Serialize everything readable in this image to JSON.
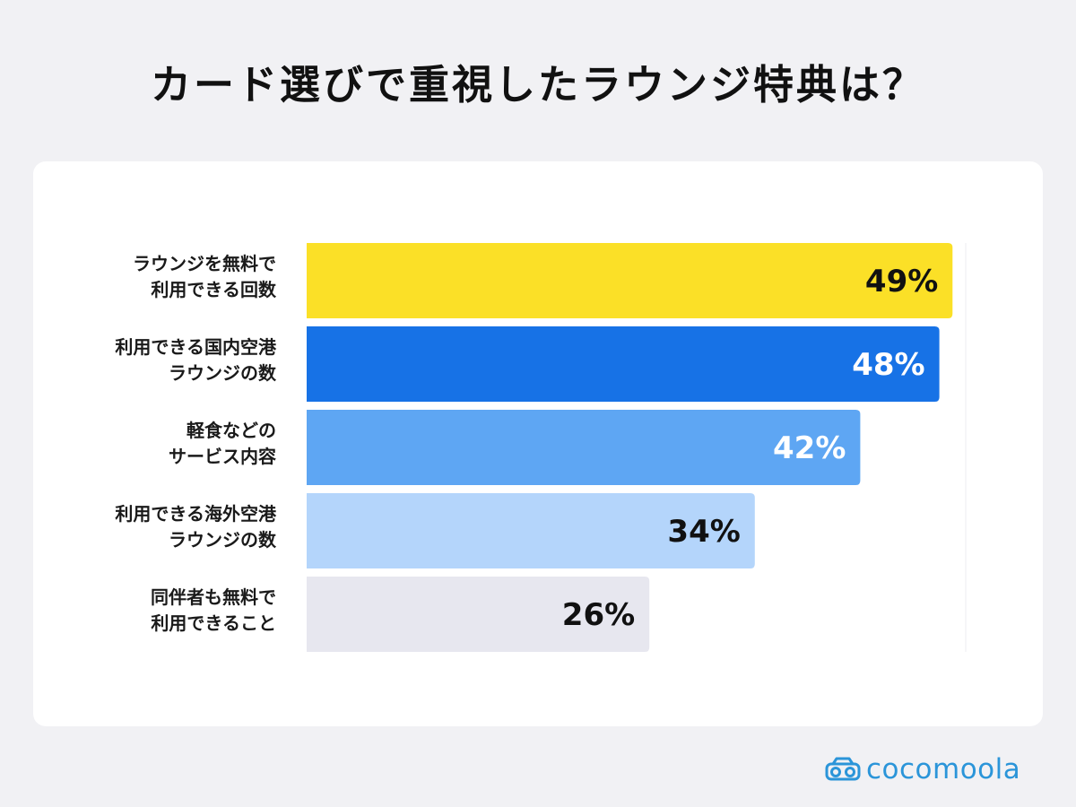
{
  "title": "カード選びで重視したラウンジ特典は？",
  "brand": {
    "name": "cocomoola",
    "color": "#2b95d9",
    "icon": "car-icon"
  },
  "chart_data": {
    "type": "bar",
    "orientation": "horizontal",
    "title": "カード選びで重視したラウンジ特典は？",
    "xlabel": "",
    "ylabel": "",
    "xlim": [
      0,
      50
    ],
    "grid": false,
    "unit": "%",
    "categories": [
      [
        "ラウンジを無料で",
        "利用できる回数"
      ],
      [
        "利用できる国内空港",
        "ラウンジの数"
      ],
      [
        "軽食などの",
        "サービス内容"
      ],
      [
        "利用できる海外空港",
        "ラウンジの数"
      ],
      [
        "同伴者も無料で",
        "利用できること"
      ]
    ],
    "values": [
      49,
      48,
      42,
      34,
      26
    ],
    "value_labels": [
      "49%",
      "48%",
      "42%",
      "34%",
      "26%"
    ],
    "bar_colors": [
      "#fbe027",
      "#1772e6",
      "#5ea6f3",
      "#b4d5fb",
      "#e7e7ef"
    ],
    "label_colors": [
      "#111111",
      "#ffffff",
      "#ffffff",
      "#111111",
      "#111111"
    ]
  }
}
